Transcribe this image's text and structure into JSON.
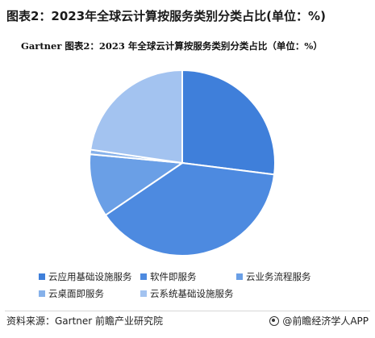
{
  "header": {
    "title": "图表2：2023年全球云计算按服务类别分类占比(单位：%)",
    "subtitle": "Gartner  图表2：2023 年全球云计算按服务类别分类占比（单位：%）"
  },
  "chart_data": {
    "type": "pie",
    "title": "Gartner  图表2：2023 年全球云计算按服务类别分类占比（单位：%）",
    "legend_position": "bottom",
    "slices": [
      {
        "name": "云应用基础设施服务",
        "value": 27.0,
        "color": "#3f7fda"
      },
      {
        "name": "软件即服务",
        "value": 38.5,
        "color": "#4d8ae0"
      },
      {
        "name": "云业务流程服务",
        "value": 11.0,
        "color": "#6a9fe6"
      },
      {
        "name": "云桌面即服务",
        "value": 0.8,
        "color": "#86b1ea"
      },
      {
        "name": "云系统基础设施服务",
        "value": 22.7,
        "color": "#a3c3f0"
      }
    ]
  },
  "footer": {
    "source": "资料来源：Gartner 前瞻产业研究院",
    "brand": "@前瞻经济学人APP"
  }
}
